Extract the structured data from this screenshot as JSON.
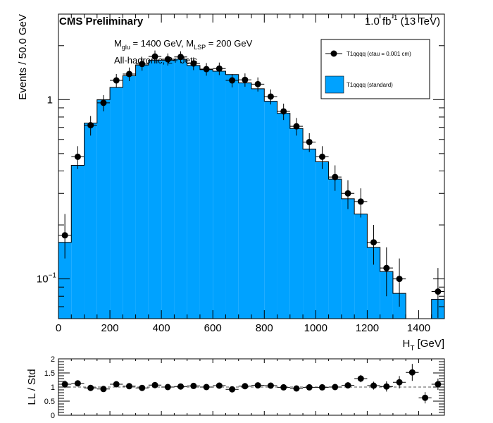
{
  "header": {
    "experiment": "CMS Preliminary",
    "lumi_value": "1.0 fb",
    "lumi_exp": "-1",
    "lumi_energy": " (13 TeV)"
  },
  "annotations": {
    "mass_line": {
      "m": "M",
      "glu_sub": "glu",
      "glu_eq": " = 1400 GeV, ",
      "m2": "M",
      "lsp_sub": "LSP",
      "lsp_eq": " = 200 GeV"
    },
    "selection": "All-hadronic, 2+ Jets"
  },
  "legend": {
    "position": "top-right",
    "entries": [
      {
        "label": "T1qqqq (ctau = 0.001 cm)",
        "style": "points"
      },
      {
        "label": "T1qqqq (standard)",
        "style": "fill"
      }
    ]
  },
  "colors": {
    "fill": "#00a2ff",
    "points": "#000000",
    "ratio_ref_line": "#555555"
  },
  "chart_data": [
    {
      "type": "histogram",
      "ylabel": "Events / 50.0 GeV",
      "xlabel_main": "H",
      "xlabel_sub": "T",
      "xlabel_unit": " [GeV]",
      "xlim": [
        0,
        1500
      ],
      "ylim": [
        0.06,
        3.0
      ],
      "yscale": "log",
      "bin_width": 50,
      "x_ticks": [
        0,
        200,
        400,
        600,
        800,
        1000,
        1200,
        1400
      ],
      "y_tick_labels": [
        {
          "value": 1,
          "base": "1",
          "exp": ""
        },
        {
          "value": 0.1,
          "base": "10",
          "exp": "−1"
        }
      ],
      "series": [
        {
          "name": "T1qqqq (standard)",
          "style": "fill",
          "bin_edges": [
            0,
            50,
            100,
            150,
            200,
            250,
            300,
            350,
            400,
            450,
            500,
            550,
            600,
            650,
            700,
            750,
            800,
            850,
            900,
            950,
            1000,
            1050,
            1100,
            1150,
            1200,
            1250,
            1300,
            1350,
            1400,
            1450,
            1500
          ],
          "values": [
            0.16,
            0.43,
            0.74,
            1.0,
            1.17,
            1.36,
            1.56,
            1.66,
            1.66,
            1.68,
            1.55,
            1.47,
            1.44,
            1.38,
            1.24,
            1.15,
            0.98,
            0.84,
            0.69,
            0.53,
            0.45,
            0.36,
            0.28,
            0.23,
            0.15,
            0.11,
            0.083,
            0.055,
            0.055,
            0.077
          ]
        },
        {
          "name": "T1qqqq (ctau = 0.001 cm)",
          "style": "points",
          "x": [
            25,
            75,
            125,
            175,
            225,
            275,
            325,
            375,
            425,
            475,
            525,
            575,
            625,
            675,
            725,
            775,
            825,
            875,
            925,
            975,
            1025,
            1075,
            1125,
            1175,
            1225,
            1275,
            1325,
            1475
          ],
          "y": [
            0.175,
            0.48,
            0.72,
            0.96,
            1.28,
            1.39,
            1.58,
            1.74,
            1.68,
            1.73,
            1.59,
            1.48,
            1.49,
            1.28,
            1.29,
            1.22,
            1.04,
            0.86,
            0.71,
            0.58,
            0.48,
            0.37,
            0.3,
            0.27,
            0.16,
            0.115,
            0.1,
            0.085
          ],
          "yerr_low": [
            0.045,
            0.07,
            0.09,
            0.1,
            0.11,
            0.12,
            0.13,
            0.14,
            0.13,
            0.13,
            0.13,
            0.12,
            0.12,
            0.11,
            0.11,
            0.11,
            0.1,
            0.09,
            0.08,
            0.07,
            0.07,
            0.06,
            0.055,
            0.05,
            0.04,
            0.035,
            0.03,
            0.03
          ],
          "yerr_high": [
            0.055,
            0.07,
            0.09,
            0.1,
            0.11,
            0.12,
            0.13,
            0.14,
            0.13,
            0.13,
            0.13,
            0.12,
            0.12,
            0.11,
            0.11,
            0.11,
            0.1,
            0.09,
            0.08,
            0.07,
            0.07,
            0.06,
            0.055,
            0.05,
            0.04,
            0.035,
            0.03,
            0.03
          ]
        }
      ]
    },
    {
      "type": "scatter",
      "ylabel": "LL / Std",
      "xlim": [
        0,
        1500
      ],
      "ylim": [
        0,
        2
      ],
      "y_ticks": [
        0,
        0.5,
        1,
        1.5,
        2
      ],
      "y_tick_labels": [
        "0",
        "0.5",
        "1",
        "1.5",
        "2"
      ],
      "reference_line": 1,
      "x": [
        25,
        75,
        125,
        175,
        225,
        275,
        325,
        375,
        425,
        475,
        525,
        575,
        625,
        675,
        725,
        775,
        825,
        875,
        925,
        975,
        1025,
        1075,
        1125,
        1175,
        1225,
        1275,
        1325,
        1375,
        1425,
        1475
      ],
      "y": [
        1.1,
        1.13,
        0.97,
        0.93,
        1.1,
        1.03,
        0.97,
        1.07,
        1.0,
        1.02,
        1.04,
        1.0,
        1.05,
        0.92,
        1.03,
        1.06,
        1.05,
        0.99,
        0.95,
        0.99,
        0.99,
        1.0,
        1.06,
        1.3,
        1.05,
        1.02,
        1.17,
        1.52,
        0.62,
        1.1
      ],
      "yerr": [
        0.13,
        0.1,
        0.08,
        0.08,
        0.07,
        0.07,
        0.06,
        0.06,
        0.06,
        0.06,
        0.06,
        0.06,
        0.06,
        0.06,
        0.06,
        0.07,
        0.07,
        0.07,
        0.08,
        0.08,
        0.09,
        0.1,
        0.11,
        0.13,
        0.14,
        0.18,
        0.22,
        0.3,
        0.2,
        0.2
      ]
    }
  ]
}
